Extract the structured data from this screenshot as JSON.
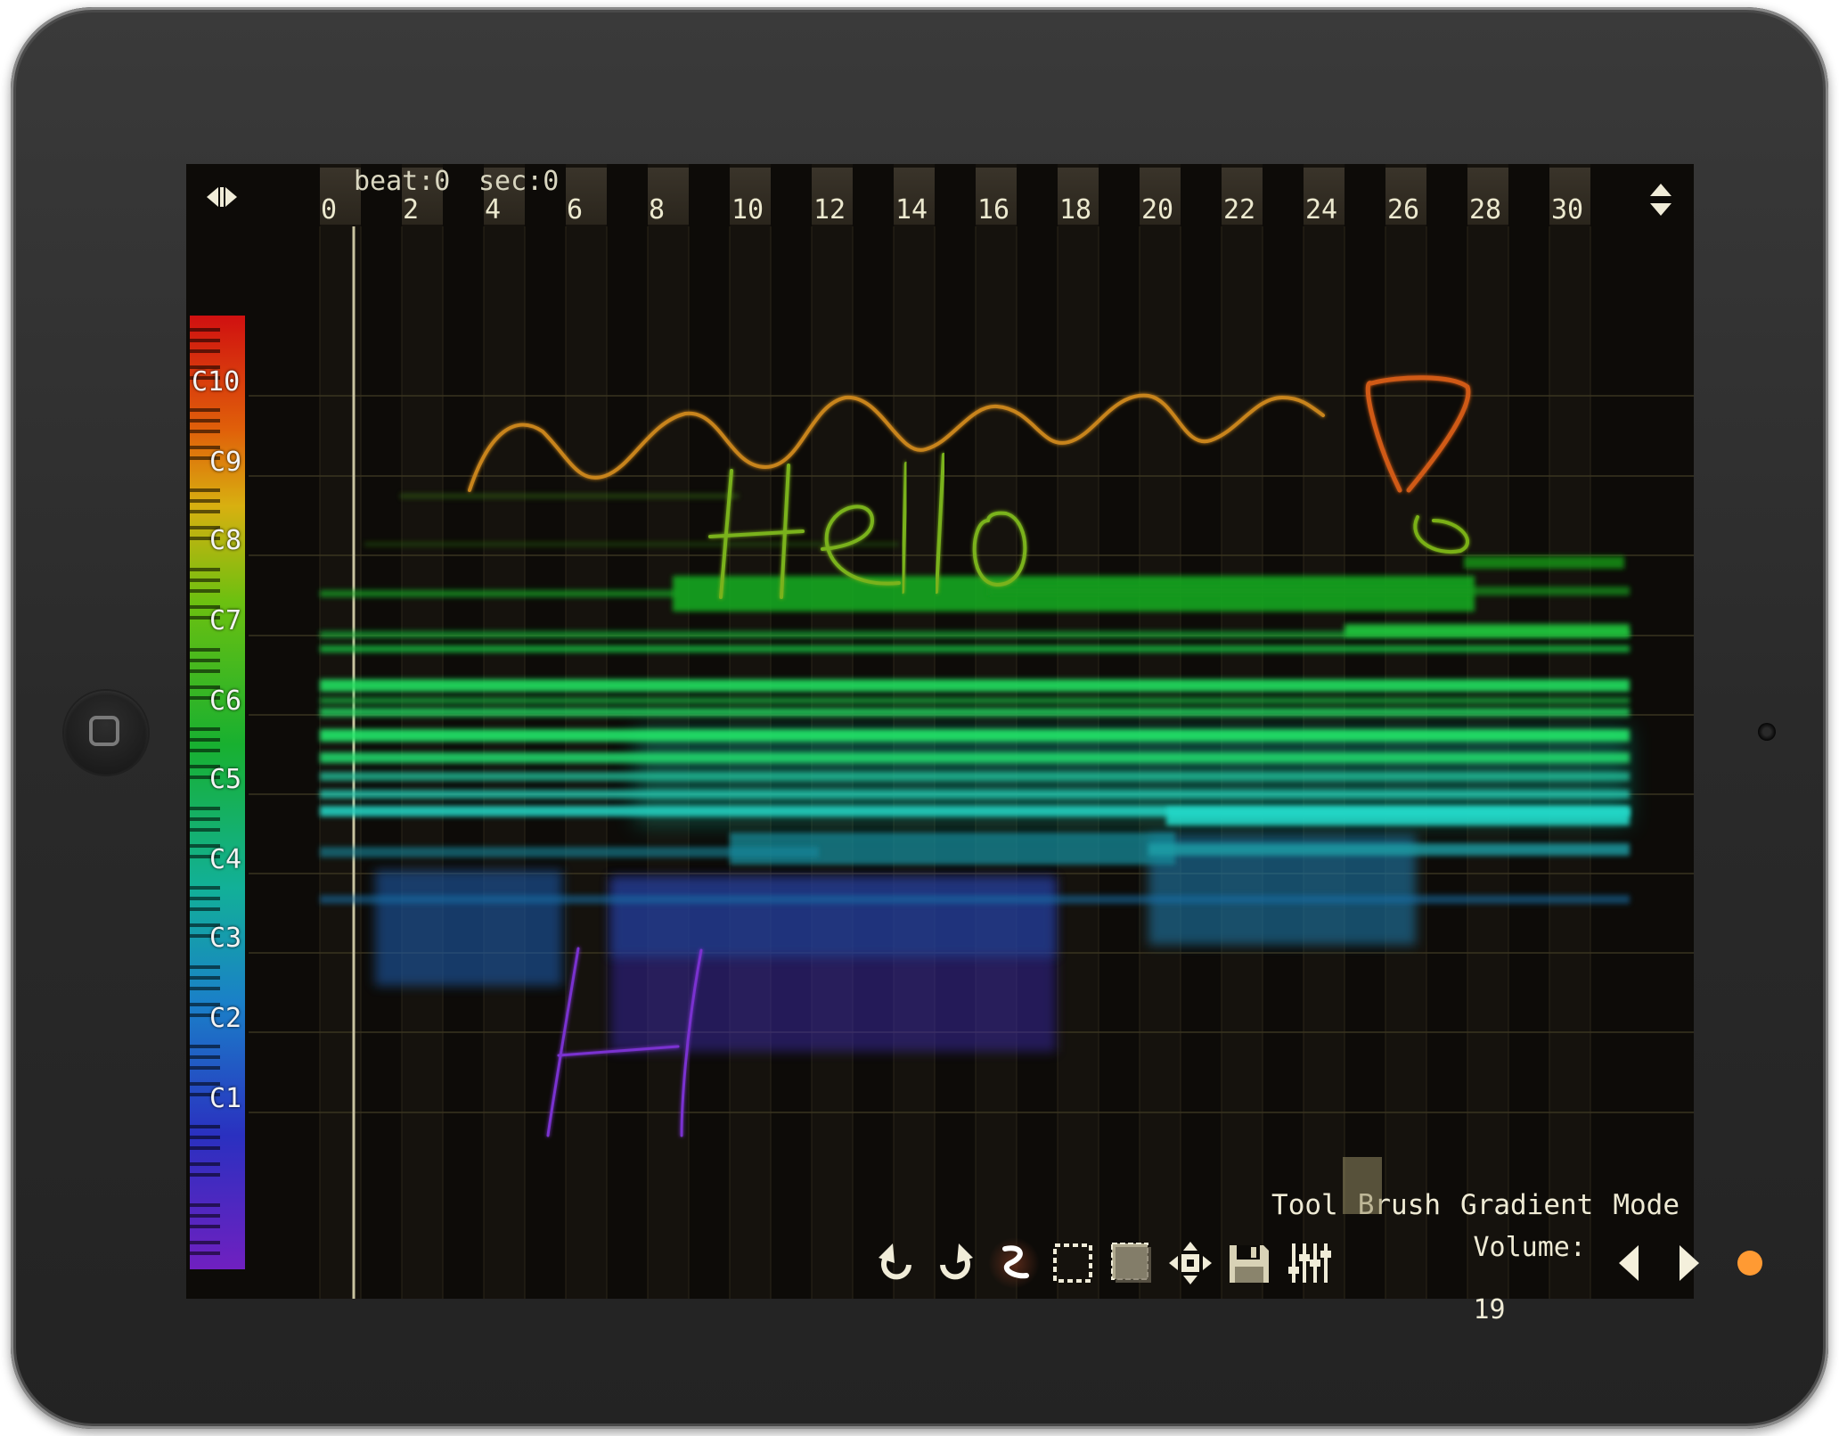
{
  "header": {
    "beat_label": "beat:0",
    "sec_label": "sec:0"
  },
  "timeline": {
    "ticks": [
      "0",
      "2",
      "4",
      "6",
      "8",
      "10",
      "12",
      "14",
      "16",
      "18",
      "20",
      "22",
      "24",
      "26",
      "28",
      "30"
    ]
  },
  "keyboard": {
    "notes": [
      "C10",
      "C9",
      "C8",
      "C7",
      "C6",
      "C5",
      "C4",
      "C3",
      "C2",
      "C1"
    ]
  },
  "menu": {
    "tool": "Tool",
    "brush": "Brush",
    "gradient": "Gradient",
    "mode": "Mode"
  },
  "toolbar": {
    "volume_label": "Volume:",
    "volume_value": "19"
  },
  "icons": {
    "horizontal_zoom": "left-right-arrows-icon",
    "vertical_zoom": "up-down-arrows-icon",
    "undo": "undo-icon",
    "redo": "redo-icon",
    "brush": "brush-stroke-icon",
    "select": "dashed-select-icon",
    "fill_select": "filled-select-icon",
    "move": "move-arrows-icon",
    "save": "floppy-disk-icon",
    "mixer": "mixer-sliders-icon",
    "prev": "triangle-left-icon",
    "next": "triangle-right-icon",
    "record": "record-dot-icon"
  },
  "colors": {
    "screen_bg": "#0d0b08",
    "text": "#ece9cf",
    "record": "#ff9a33"
  }
}
